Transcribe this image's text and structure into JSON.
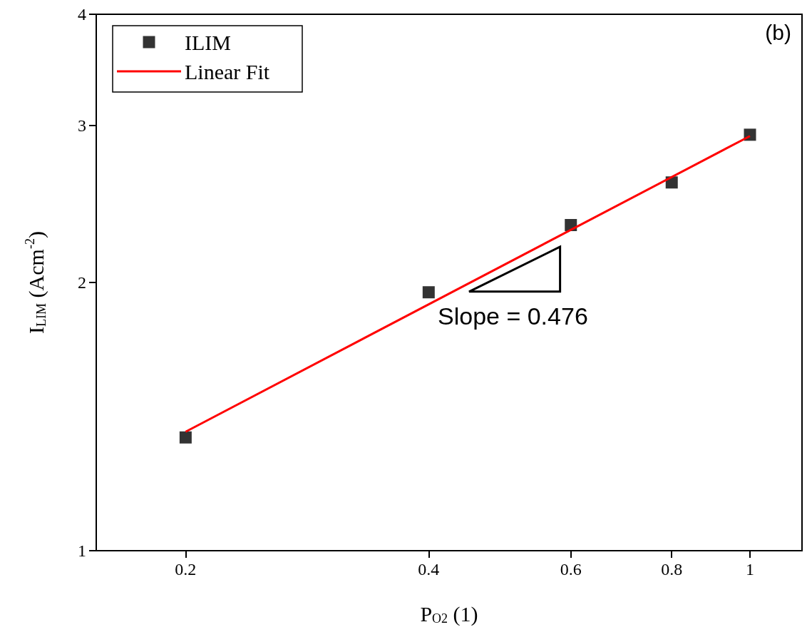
{
  "chart_data": {
    "type": "scatter",
    "xlabel": "P$_{O2}$ (1)",
    "ylabel": "I$_{LIM}$ (Acm$^{-2}$)",
    "log": "xy",
    "xlim": [
      0.155,
      1.16
    ],
    "xticks": [
      0.2,
      0.4,
      0.6,
      0.8,
      1
    ],
    "ylim": [
      1,
      4
    ],
    "yticks": [
      1,
      2,
      3,
      4
    ],
    "grid": false,
    "legend": "top left",
    "series": [
      {
        "name": "ILIM",
        "type": "scatter",
        "marker": "square",
        "color": "#000000",
        "x": [
          0.2,
          0.4,
          0.6,
          0.8,
          1
        ],
        "values": [
          1.34,
          1.95,
          2.32,
          2.59,
          2.93
        ]
      },
      {
        "name": "Linear Fit",
        "type": "line",
        "marker": "none",
        "color": "#ff0000",
        "x": [
          0.2,
          1
        ],
        "values": [
          1.36,
          2.92
        ]
      }
    ],
    "annotations": [
      "Slope = 0.476",
      "(b)"
    ]
  }
}
